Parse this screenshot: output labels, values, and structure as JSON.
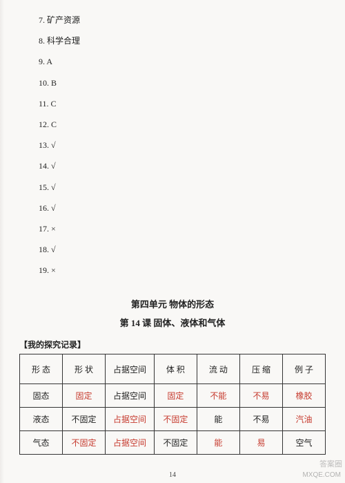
{
  "answers": {
    "items": [
      "7. 矿产资源",
      "8. 科学合理",
      "9. A",
      "10. B",
      "11. C",
      "12. C",
      "13. √",
      "14. √",
      "15. √",
      "16. √",
      "17. ×",
      "18. √",
      "19. ×"
    ]
  },
  "section_title": "第四单元 物体的形态",
  "lesson_title": "第 14 课 固体、液体和气体",
  "record_label": "【我的探究记录】",
  "table": {
    "columns": [
      "形 态",
      "形 状",
      "占据空间",
      "体 积",
      "流 动",
      "压 缩",
      "例 子"
    ],
    "col_widths": [
      "14%",
      "14%",
      "16%",
      "14%",
      "14%",
      "14%",
      "14%"
    ],
    "header_color": "#222222",
    "rows": [
      {
        "label": {
          "text": "固态",
          "color": "#222222"
        },
        "cells": [
          {
            "text": "固定",
            "color": "#c63a2e"
          },
          {
            "text": "占据空间",
            "color": "#222222"
          },
          {
            "text": "固定",
            "color": "#c63a2e"
          },
          {
            "text": "不能",
            "color": "#c63a2e"
          },
          {
            "text": "不易",
            "color": "#c63a2e"
          },
          {
            "text": "橡胶",
            "color": "#c63a2e"
          }
        ]
      },
      {
        "label": {
          "text": "液态",
          "color": "#222222"
        },
        "cells": [
          {
            "text": "不固定",
            "color": "#222222"
          },
          {
            "text": "占据空间",
            "color": "#c63a2e"
          },
          {
            "text": "不固定",
            "color": "#c63a2e"
          },
          {
            "text": "能",
            "color": "#222222"
          },
          {
            "text": "不易",
            "color": "#222222"
          },
          {
            "text": "汽油",
            "color": "#c63a2e"
          }
        ]
      },
      {
        "label": {
          "text": "气态",
          "color": "#222222"
        },
        "cells": [
          {
            "text": "不固定",
            "color": "#c63a2e"
          },
          {
            "text": "占据空间",
            "color": "#c63a2e"
          },
          {
            "text": "不固定",
            "color": "#222222"
          },
          {
            "text": "能",
            "color": "#c63a2e"
          },
          {
            "text": "易",
            "color": "#c63a2e"
          },
          {
            "text": "空气",
            "color": "#222222"
          }
        ]
      }
    ]
  },
  "page_number": "14",
  "watermark": "MXQE.COM",
  "corner_brand": "答案圈"
}
